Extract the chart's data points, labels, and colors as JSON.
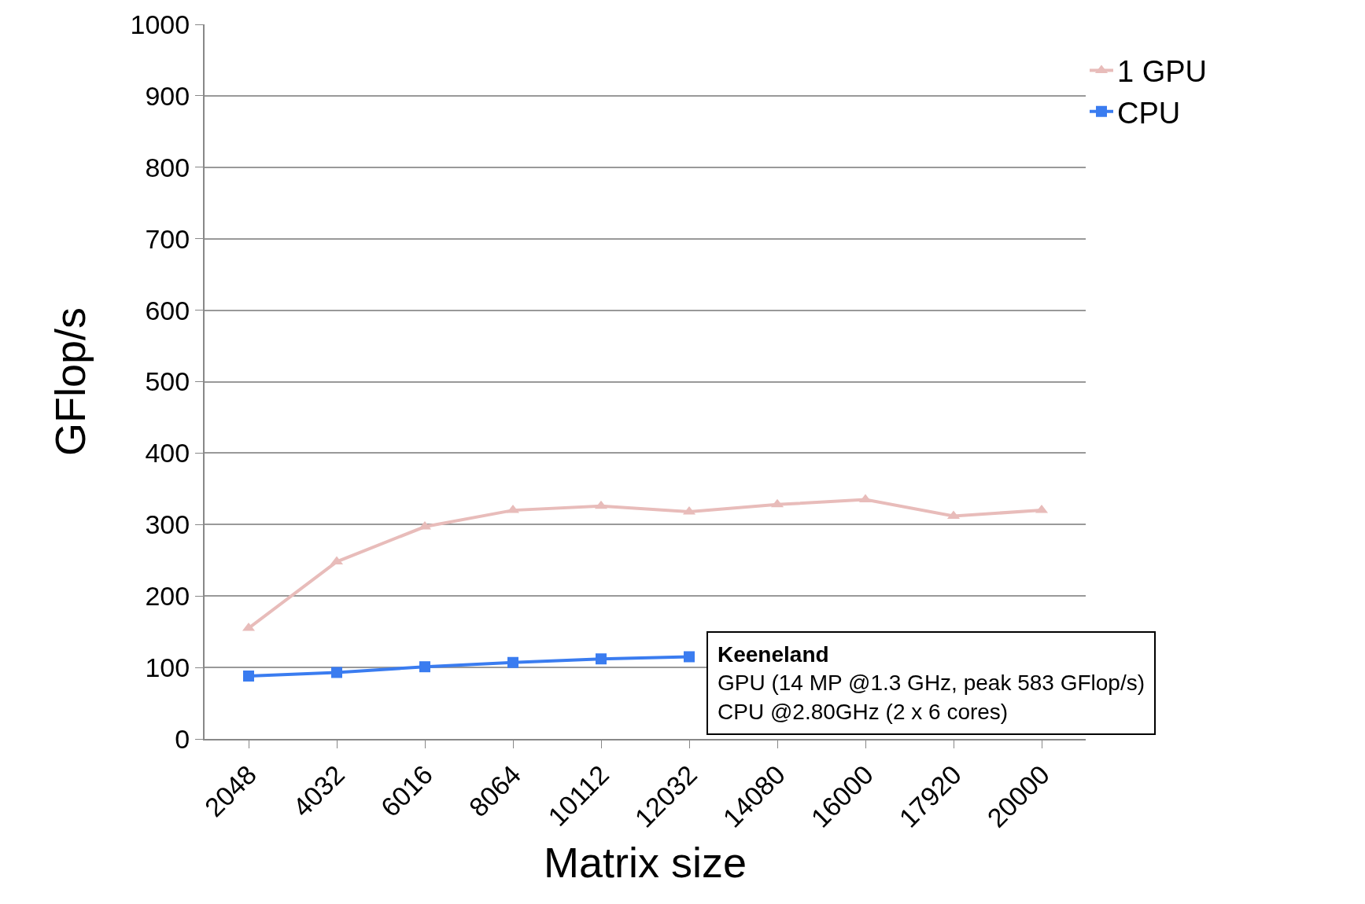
{
  "chart_data": {
    "type": "line",
    "xlabel": "Matrix size",
    "ylabel": "GFlop/s",
    "categories": [
      "2048",
      "4032",
      "6016",
      "8064",
      "10112",
      "12032",
      "14080",
      "16000",
      "17920",
      "20000"
    ],
    "series": [
      {
        "name": "1 GPU",
        "color": "#e8bcba",
        "marker": "triangle",
        "values": [
          155,
          248,
          297,
          320,
          326,
          318,
          328,
          335,
          312,
          320
        ]
      },
      {
        "name": "CPU",
        "color": "#3a7cf0",
        "marker": "square",
        "values": [
          88,
          93,
          101,
          107,
          112,
          115,
          null,
          null,
          null,
          null
        ]
      }
    ],
    "ylim": [
      0,
      1000
    ],
    "yticks": [
      0,
      100,
      200,
      300,
      400,
      500,
      600,
      700,
      800,
      900,
      1000
    ],
    "grid": "y",
    "legend": "right",
    "line_style": "solid",
    "annotations": [
      "Keeneland",
      "GPU (14 MP @1.3 GHz, peak 583 GFlop/s)",
      "CPU @2.80GHz (2 x 6 cores)"
    ]
  }
}
